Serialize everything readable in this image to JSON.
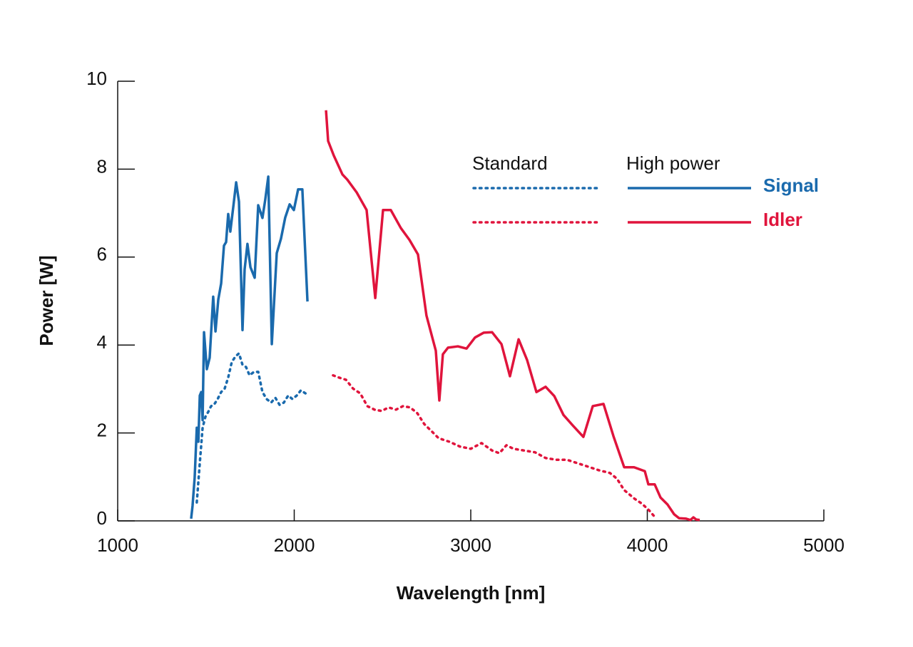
{
  "chart_data": {
    "type": "line",
    "xlabel": "Wavelength [nm]",
    "ylabel": "Power [W]",
    "xlim": [
      1000,
      5000
    ],
    "xticks": [
      1000,
      2000,
      3000,
      4000,
      5000
    ],
    "ylim": [
      0,
      10
    ],
    "yticks": [
      0,
      2,
      4,
      6,
      8,
      10
    ],
    "legend": {
      "columns": [
        "Standard",
        "High power"
      ],
      "rows": [
        "Signal",
        "Idler"
      ]
    },
    "series": [
      {
        "color": "#1a6aad",
        "line_style": "dotted",
        "x": [
          1448,
          1465,
          1481,
          1497,
          1513,
          1529,
          1545,
          1566,
          1586,
          1606,
          1626,
          1646,
          1667,
          1687,
          1707,
          1727,
          1747,
          1772,
          1796,
          1820,
          1844,
          1869,
          1893,
          1917,
          1941,
          1966,
          1990,
          2014,
          2038,
          2071
        ],
        "values": [
          0.42,
          1.31,
          2.12,
          2.37,
          2.48,
          2.61,
          2.64,
          2.77,
          2.93,
          3.01,
          3.26,
          3.61,
          3.74,
          3.81,
          3.55,
          3.5,
          3.31,
          3.39,
          3.39,
          2.93,
          2.77,
          2.69,
          2.8,
          2.64,
          2.69,
          2.85,
          2.77,
          2.85,
          2.97,
          2.88
        ]
      },
      {
        "color": "#1a6aad",
        "line_style": "solid",
        "x": [
          1416,
          1424,
          1436,
          1448,
          1457,
          1465,
          1473,
          1481,
          1489,
          1505,
          1521,
          1541,
          1554,
          1570,
          1586,
          1602,
          1614,
          1626,
          1638,
          1655,
          1671,
          1687,
          1707,
          1719,
          1735,
          1752,
          1776,
          1796,
          1820,
          1836,
          1853,
          1873,
          1901,
          1925,
          1949,
          1974,
          1998,
          2022,
          2046,
          2075
        ],
        "values": [
          0.05,
          0.34,
          0.98,
          2.12,
          1.8,
          2.85,
          2.93,
          2.29,
          4.29,
          3.45,
          3.71,
          5.1,
          4.31,
          5.04,
          5.4,
          6.26,
          6.34,
          6.98,
          6.58,
          7.15,
          7.7,
          7.26,
          4.34,
          5.72,
          6.3,
          5.77,
          5.53,
          7.18,
          6.89,
          7.31,
          7.83,
          4.02,
          6.09,
          6.42,
          6.9,
          7.2,
          7.07,
          7.54,
          7.54,
          4.99
        ]
      },
      {
        "color": "#e0143c",
        "line_style": "dotted",
        "x": [
          2220,
          2253,
          2293,
          2333,
          2374,
          2414,
          2455,
          2495,
          2535,
          2576,
          2616,
          2657,
          2697,
          2737,
          2778,
          2818,
          2879,
          2939,
          3000,
          3061,
          3121,
          3162,
          3202,
          3242,
          3303,
          3364,
          3424,
          3485,
          3545,
          3606,
          3667,
          3727,
          3788,
          3828,
          3869,
          3929,
          3970,
          4010,
          4051
        ],
        "values": [
          3.31,
          3.26,
          3.21,
          3.01,
          2.9,
          2.61,
          2.53,
          2.5,
          2.58,
          2.53,
          2.61,
          2.58,
          2.45,
          2.2,
          2.04,
          1.88,
          1.8,
          1.69,
          1.64,
          1.77,
          1.6,
          1.54,
          1.72,
          1.64,
          1.6,
          1.56,
          1.43,
          1.39,
          1.39,
          1.31,
          1.23,
          1.15,
          1.09,
          0.96,
          0.7,
          0.5,
          0.39,
          0.24,
          0.05
        ]
      },
      {
        "color": "#e0143c",
        "line_style": "solid",
        "x": [
          2180,
          2192,
          2224,
          2273,
          2301,
          2354,
          2410,
          2459,
          2503,
          2547,
          2604,
          2653,
          2701,
          2749,
          2802,
          2822,
          2842,
          2871,
          2927,
          2976,
          3024,
          3073,
          3121,
          3174,
          3222,
          3271,
          3319,
          3372,
          3424,
          3473,
          3525,
          3578,
          3638,
          3691,
          3752,
          3808,
          3869,
          3925,
          3986,
          4006,
          4042,
          4075,
          4115,
          4152,
          4180,
          4220,
          4244,
          4261,
          4277,
          4297
        ],
        "values": [
          9.34,
          8.64,
          8.31,
          7.88,
          7.76,
          7.47,
          7.07,
          5.07,
          7.07,
          7.07,
          6.66,
          6.39,
          6.06,
          4.67,
          3.87,
          2.74,
          3.79,
          3.94,
          3.97,
          3.92,
          4.17,
          4.28,
          4.29,
          4.02,
          3.29,
          4.13,
          3.66,
          2.93,
          3.05,
          2.84,
          2.41,
          2.17,
          1.91,
          2.61,
          2.66,
          1.93,
          1.22,
          1.22,
          1.13,
          0.83,
          0.83,
          0.53,
          0.37,
          0.15,
          0.06,
          0.05,
          0.02,
          0.08,
          0.03,
          0.02
        ]
      }
    ]
  }
}
